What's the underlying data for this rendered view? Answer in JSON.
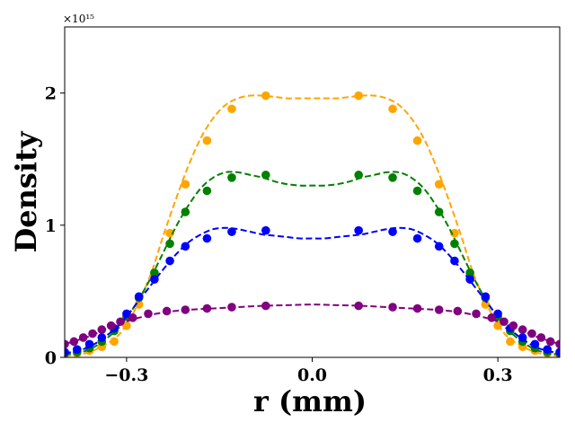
{
  "chart_data": {
    "type": "line",
    "title": "",
    "xlabel": "r (mm)",
    "ylabel": "Density",
    "y_offset_text": "×10¹⁵",
    "xlim": [
      -0.4,
      0.4
    ],
    "ylim": [
      0,
      2.5
    ],
    "xticks": [
      -0.3,
      0.0,
      0.3
    ],
    "xtick_labels": [
      "−0.3",
      "0.0",
      "0.3"
    ],
    "yticks": [
      0,
      1,
      2
    ],
    "ytick_labels": [
      "0",
      "1",
      "2"
    ],
    "grid": false,
    "legend": false,
    "series": [
      {
        "name": "orange",
        "color": "#FFA500",
        "points_x": [
          -0.4,
          -0.38,
          -0.36,
          -0.34,
          -0.32,
          -0.3,
          -0.28,
          -0.255,
          -0.23,
          -0.205,
          -0.17,
          -0.13,
          -0.075,
          0.075,
          0.13,
          0.17,
          0.205,
          0.23,
          0.255,
          0.28,
          0.3,
          0.32,
          0.34,
          0.36,
          0.38,
          0.4
        ],
        "points_y": [
          0.02,
          0.03,
          0.05,
          0.08,
          0.12,
          0.24,
          0.4,
          0.62,
          0.94,
          1.31,
          1.64,
          1.88,
          1.98,
          1.98,
          1.88,
          1.64,
          1.31,
          0.94,
          0.62,
          0.4,
          0.24,
          0.12,
          0.08,
          0.05,
          0.03,
          0.02
        ],
        "fit_x": [
          -0.4,
          -0.36,
          -0.32,
          -0.3,
          -0.28,
          -0.26,
          -0.24,
          -0.22,
          -0.2,
          -0.18,
          -0.16,
          -0.14,
          -0.12,
          -0.1,
          -0.08,
          -0.06,
          -0.04,
          -0.02,
          0.0,
          0.02,
          0.04,
          0.06,
          0.08,
          0.1,
          0.12,
          0.14,
          0.16,
          0.18,
          0.2,
          0.22,
          0.24,
          0.26,
          0.28,
          0.3,
          0.32,
          0.36,
          0.4
        ],
        "fit_y": [
          0.01,
          0.04,
          0.14,
          0.25,
          0.42,
          0.64,
          0.93,
          1.2,
          1.45,
          1.66,
          1.81,
          1.91,
          1.96,
          1.98,
          1.98,
          1.97,
          1.96,
          1.96,
          1.96,
          1.96,
          1.96,
          1.97,
          1.98,
          1.98,
          1.96,
          1.91,
          1.81,
          1.66,
          1.45,
          1.2,
          0.93,
          0.64,
          0.42,
          0.25,
          0.14,
          0.04,
          0.01
        ]
      },
      {
        "name": "green",
        "color": "#008000",
        "points_x": [
          -0.4,
          -0.38,
          -0.36,
          -0.34,
          -0.32,
          -0.3,
          -0.28,
          -0.255,
          -0.23,
          -0.205,
          -0.17,
          -0.13,
          -0.075,
          0.075,
          0.13,
          0.17,
          0.205,
          0.23,
          0.255,
          0.28,
          0.3,
          0.32,
          0.34,
          0.36,
          0.38,
          0.4
        ],
        "points_y": [
          0.03,
          0.04,
          0.07,
          0.12,
          0.2,
          0.31,
          0.45,
          0.64,
          0.86,
          1.1,
          1.26,
          1.36,
          1.38,
          1.38,
          1.36,
          1.26,
          1.1,
          0.86,
          0.64,
          0.45,
          0.31,
          0.2,
          0.12,
          0.07,
          0.04,
          0.03
        ],
        "fit_x": [
          -0.4,
          -0.36,
          -0.32,
          -0.3,
          -0.28,
          -0.26,
          -0.24,
          -0.22,
          -0.2,
          -0.18,
          -0.16,
          -0.14,
          -0.12,
          -0.1,
          -0.08,
          -0.06,
          -0.04,
          -0.02,
          0.0,
          0.02,
          0.04,
          0.06,
          0.08,
          0.1,
          0.12,
          0.14,
          0.16,
          0.18,
          0.2,
          0.22,
          0.24,
          0.26,
          0.28,
          0.3,
          0.32,
          0.36,
          0.4
        ],
        "fit_y": [
          0.02,
          0.06,
          0.19,
          0.3,
          0.44,
          0.61,
          0.8,
          0.99,
          1.15,
          1.28,
          1.36,
          1.4,
          1.4,
          1.38,
          1.36,
          1.33,
          1.31,
          1.3,
          1.3,
          1.3,
          1.31,
          1.33,
          1.36,
          1.38,
          1.4,
          1.4,
          1.36,
          1.28,
          1.15,
          0.99,
          0.8,
          0.61,
          0.44,
          0.3,
          0.19,
          0.06,
          0.02
        ]
      },
      {
        "name": "blue",
        "color": "#0000FF",
        "points_x": [
          -0.4,
          -0.38,
          -0.36,
          -0.34,
          -0.32,
          -0.3,
          -0.28,
          -0.255,
          -0.23,
          -0.205,
          -0.17,
          -0.13,
          -0.075,
          0.075,
          0.13,
          0.17,
          0.205,
          0.23,
          0.255,
          0.28,
          0.3,
          0.32,
          0.34,
          0.36,
          0.38,
          0.4
        ],
        "points_y": [
          0.04,
          0.06,
          0.1,
          0.15,
          0.22,
          0.33,
          0.46,
          0.59,
          0.73,
          0.84,
          0.9,
          0.95,
          0.96,
          0.96,
          0.95,
          0.9,
          0.84,
          0.73,
          0.59,
          0.46,
          0.33,
          0.22,
          0.15,
          0.1,
          0.06,
          0.04
        ],
        "fit_x": [
          -0.4,
          -0.36,
          -0.32,
          -0.3,
          -0.28,
          -0.26,
          -0.24,
          -0.22,
          -0.2,
          -0.18,
          -0.16,
          -0.14,
          -0.12,
          -0.1,
          -0.08,
          -0.06,
          -0.04,
          -0.02,
          0.0,
          0.02,
          0.04,
          0.06,
          0.08,
          0.1,
          0.12,
          0.14,
          0.16,
          0.18,
          0.2,
          0.22,
          0.24,
          0.26,
          0.28,
          0.3,
          0.32,
          0.36,
          0.4
        ],
        "fit_y": [
          0.03,
          0.08,
          0.21,
          0.31,
          0.43,
          0.55,
          0.67,
          0.78,
          0.87,
          0.93,
          0.97,
          0.98,
          0.97,
          0.95,
          0.93,
          0.92,
          0.91,
          0.9,
          0.9,
          0.9,
          0.91,
          0.92,
          0.93,
          0.95,
          0.97,
          0.98,
          0.97,
          0.93,
          0.87,
          0.78,
          0.67,
          0.55,
          0.43,
          0.31,
          0.21,
          0.08,
          0.03
        ]
      },
      {
        "name": "purple",
        "color": "#800080",
        "points_x": [
          -0.4,
          -0.385,
          -0.37,
          -0.355,
          -0.34,
          -0.325,
          -0.31,
          -0.29,
          -0.265,
          -0.235,
          -0.205,
          -0.17,
          -0.13,
          -0.075,
          0.075,
          0.13,
          0.17,
          0.205,
          0.235,
          0.265,
          0.29,
          0.31,
          0.325,
          0.34,
          0.355,
          0.37,
          0.385,
          0.4
        ],
        "points_y": [
          0.1,
          0.12,
          0.15,
          0.18,
          0.21,
          0.24,
          0.27,
          0.3,
          0.33,
          0.35,
          0.36,
          0.37,
          0.38,
          0.39,
          0.39,
          0.38,
          0.37,
          0.36,
          0.35,
          0.33,
          0.3,
          0.27,
          0.24,
          0.21,
          0.18,
          0.15,
          0.12,
          0.1
        ],
        "fit_x": [
          -0.4,
          -0.36,
          -0.32,
          -0.28,
          -0.24,
          -0.2,
          -0.16,
          -0.12,
          -0.08,
          -0.04,
          0.0,
          0.04,
          0.08,
          0.12,
          0.16,
          0.2,
          0.24,
          0.28,
          0.32,
          0.36,
          0.4
        ],
        "fit_y": [
          0.1,
          0.16,
          0.24,
          0.3,
          0.34,
          0.36,
          0.37,
          0.38,
          0.39,
          0.395,
          0.4,
          0.395,
          0.39,
          0.38,
          0.37,
          0.36,
          0.34,
          0.3,
          0.24,
          0.16,
          0.1
        ]
      }
    ]
  }
}
